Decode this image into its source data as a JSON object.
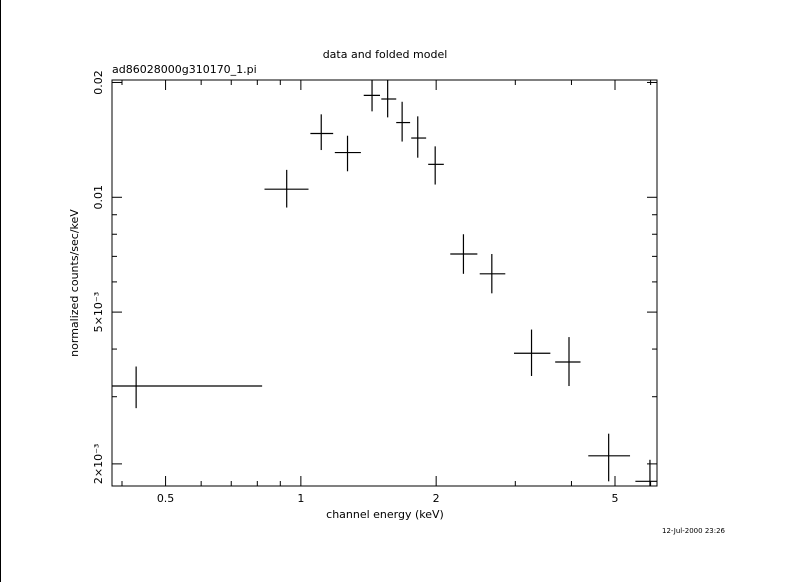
{
  "chart_data": {
    "type": "scatter",
    "title": "data and folded model",
    "subtitle": "ad86028000g310170_1.pi",
    "xlabel": "channel energy (keV)",
    "ylabel": "normalized counts/sec/keV",
    "xscale": "log",
    "yscale": "log",
    "xlim": [
      0.38,
      6.2
    ],
    "ylim": [
      0.00175,
      0.0203
    ],
    "x_ticklabels": [
      "0.5",
      "1",
      "2",
      "5"
    ],
    "x_tickvalues": [
      0.5,
      1,
      2,
      5
    ],
    "y_ticklabels": [
      "2×10⁻³",
      "5×10⁻³",
      "0.01",
      "0.02"
    ],
    "y_tickvalues": [
      0.002,
      0.005,
      0.01,
      0.02
    ],
    "grid": false,
    "legend": "none",
    "timestamp": "12-Jul-2000 23:26",
    "points": [
      {
        "x": 0.43,
        "xlo": 0.38,
        "xhi": 0.82,
        "y": 0.0032,
        "ylo": 0.0028,
        "yhi": 0.0036
      },
      {
        "x": 0.93,
        "xlo": 0.83,
        "xhi": 1.04,
        "y": 0.0105,
        "ylo": 0.0094,
        "yhi": 0.0118
      },
      {
        "x": 1.11,
        "xlo": 1.05,
        "xhi": 1.18,
        "y": 0.0147,
        "ylo": 0.0133,
        "yhi": 0.0165
      },
      {
        "x": 1.27,
        "xlo": 1.19,
        "xhi": 1.36,
        "y": 0.0131,
        "ylo": 0.0117,
        "yhi": 0.0145
      },
      {
        "x": 1.44,
        "xlo": 1.38,
        "xhi": 1.5,
        "y": 0.0185,
        "ylo": 0.0168,
        "yhi": 0.0203
      },
      {
        "x": 1.56,
        "xlo": 1.51,
        "xhi": 1.63,
        "y": 0.0181,
        "ylo": 0.0162,
        "yhi": 0.0203
      },
      {
        "x": 1.68,
        "xlo": 1.63,
        "xhi": 1.75,
        "y": 0.0157,
        "ylo": 0.014,
        "yhi": 0.0178
      },
      {
        "x": 1.82,
        "xlo": 1.76,
        "xhi": 1.9,
        "y": 0.0143,
        "ylo": 0.0127,
        "yhi": 0.0163
      },
      {
        "x": 1.99,
        "xlo": 1.92,
        "xhi": 2.08,
        "y": 0.0122,
        "ylo": 0.0108,
        "yhi": 0.0136
      },
      {
        "x": 2.3,
        "xlo": 2.15,
        "xhi": 2.47,
        "y": 0.0071,
        "ylo": 0.0063,
        "yhi": 0.008
      },
      {
        "x": 2.66,
        "xlo": 2.5,
        "xhi": 2.85,
        "y": 0.0063,
        "ylo": 0.0056,
        "yhi": 0.0071
      },
      {
        "x": 3.26,
        "xlo": 2.98,
        "xhi": 3.59,
        "y": 0.0039,
        "ylo": 0.0034,
        "yhi": 0.0045
      },
      {
        "x": 3.95,
        "xlo": 3.68,
        "xhi": 4.19,
        "y": 0.0037,
        "ylo": 0.0032,
        "yhi": 0.0043
      },
      {
        "x": 4.84,
        "xlo": 4.36,
        "xhi": 5.4,
        "y": 0.0021,
        "ylo": 0.0018,
        "yhi": 0.0024
      },
      {
        "x": 5.98,
        "xlo": 5.55,
        "xhi": 6.2,
        "y": 0.0018,
        "ylo": 0.00175,
        "yhi": 0.00205
      }
    ]
  }
}
